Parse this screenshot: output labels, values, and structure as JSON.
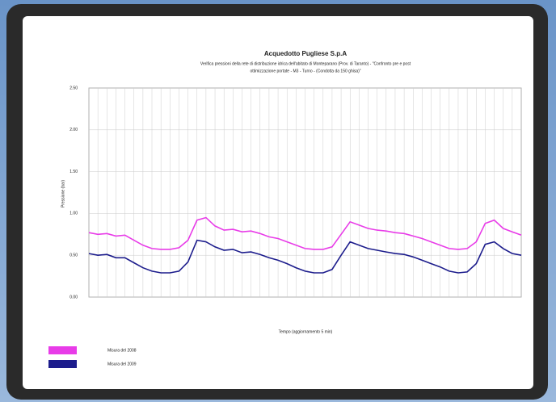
{
  "chart_data": {
    "type": "line",
    "title": "Acquedotto Pugliese S.p.A",
    "subtitle": [
      "Verifica pressioni della rete di distribuzione idrica dell'abitato di Monteparano (Prov. di Taranto) - \"Confronto pre e post",
      "ottimizzazione portate - M3 - Turno - (Condotta da 150 ghisa)\""
    ],
    "y_label": "Pressione (bar)",
    "x_label": "Tempo (aggiornamento 5 min)",
    "x": [
      0,
      1,
      2,
      3,
      4,
      5,
      6,
      7,
      8,
      9,
      10,
      11,
      12,
      13,
      14,
      15,
      16,
      17,
      18,
      19,
      20,
      21,
      22,
      23,
      24,
      25,
      26,
      27,
      28,
      29,
      30,
      31,
      32,
      33,
      34,
      35,
      36,
      37,
      38,
      39,
      40,
      41,
      42,
      43,
      44,
      45,
      46,
      47,
      48
    ],
    "xlim": [
      0,
      48
    ],
    "ylim": [
      0,
      2.5
    ],
    "yticks": [
      {
        "value": 0,
        "label": "0.00"
      },
      {
        "value": 0.5,
        "label": "0.50"
      },
      {
        "value": 1,
        "label": "1.00"
      },
      {
        "value": 1.5,
        "label": "1.50"
      },
      {
        "value": 2,
        "label": "2.00"
      },
      {
        "value": 2.5,
        "label": "2.50"
      }
    ],
    "grid": true,
    "series": [
      {
        "name": "Misura del 2008",
        "color": "#e83ce8",
        "values": [
          0.77,
          0.75,
          0.76,
          0.73,
          0.74,
          0.68,
          0.62,
          0.58,
          0.57,
          0.57,
          0.59,
          0.68,
          0.92,
          0.95,
          0.85,
          0.8,
          0.81,
          0.78,
          0.79,
          0.76,
          0.72,
          0.7,
          0.66,
          0.62,
          0.58,
          0.57,
          0.57,
          0.6,
          0.75,
          0.9,
          0.86,
          0.82,
          0.8,
          0.79,
          0.77,
          0.76,
          0.73,
          0.7,
          0.66,
          0.62,
          0.58,
          0.57,
          0.58,
          0.66,
          0.88,
          0.92,
          0.82,
          0.78,
          0.74
        ]
      },
      {
        "name": "Misura del 2009",
        "color": "#1c1c8c",
        "values": [
          0.52,
          0.5,
          0.51,
          0.47,
          0.47,
          0.41,
          0.35,
          0.31,
          0.29,
          0.29,
          0.31,
          0.42,
          0.68,
          0.66,
          0.6,
          0.56,
          0.57,
          0.53,
          0.54,
          0.51,
          0.47,
          0.44,
          0.4,
          0.35,
          0.31,
          0.29,
          0.29,
          0.33,
          0.5,
          0.66,
          0.62,
          0.58,
          0.56,
          0.54,
          0.52,
          0.51,
          0.48,
          0.44,
          0.4,
          0.36,
          0.31,
          0.29,
          0.3,
          0.4,
          0.63,
          0.66,
          0.58,
          0.52,
          0.5
        ]
      }
    ]
  }
}
